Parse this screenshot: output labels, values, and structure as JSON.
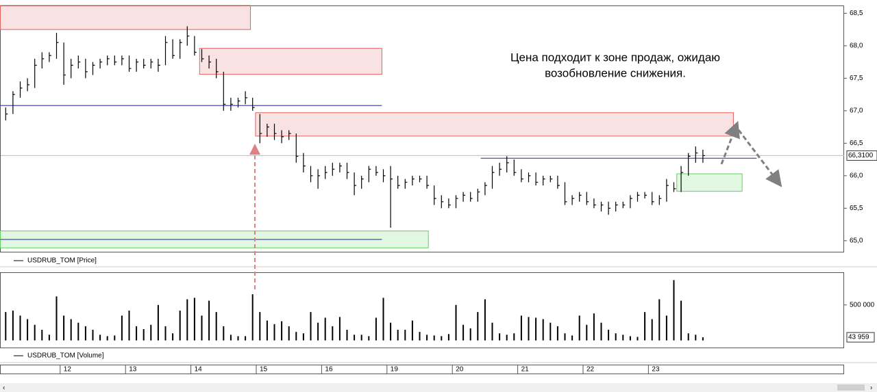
{
  "chart_data": [
    {
      "type": "ohlc",
      "legend": "USDRUB_TOM [Price]",
      "color": "#000000",
      "annotation_lines": [
        "Цена подходит к зоне продаж, ожидаю",
        "возобновление снижения."
      ],
      "ylim": [
        64.83,
        68.62
      ],
      "yticks": [
        {
          "value": 65.0,
          "label": "65,0"
        },
        {
          "value": 65.5,
          "label": "65,5"
        },
        {
          "value": 66.0,
          "label": "66,0"
        },
        {
          "value": 66.5,
          "label": "66,5"
        },
        {
          "value": 67.0,
          "label": "67,0"
        },
        {
          "value": 67.5,
          "label": "67,5"
        },
        {
          "value": 68.0,
          "label": "68,0"
        },
        {
          "value": 68.5,
          "label": "68,5"
        }
      ],
      "current": {
        "value": 66.31,
        "label": "66,3100"
      },
      "high": [
        67.05,
        67.3,
        67.45,
        67.5,
        67.8,
        67.9,
        67.9,
        68.2,
        68.05,
        67.8,
        67.85,
        67.8,
        67.75,
        67.8,
        67.85,
        67.85,
        67.85,
        67.85,
        67.8,
        67.8,
        67.8,
        67.8,
        68.15,
        68.1,
        68.1,
        68.3,
        68.15,
        67.95,
        67.85,
        67.8,
        67.6,
        67.2,
        67.2,
        67.3,
        67.2,
        66.95,
        66.8,
        66.8,
        66.7,
        66.7,
        66.65,
        66.35,
        66.15,
        66.1,
        66.15,
        66.2,
        66.2,
        66.2,
        66.05,
        66.0,
        66.15,
        66.15,
        66.1,
        66.15,
        66.0,
        65.95,
        66.0,
        66.0,
        66.0,
        65.85,
        65.7,
        65.65,
        65.7,
        65.75,
        65.75,
        65.8,
        65.9,
        66.15,
        66.2,
        66.3,
        66.25,
        66.1,
        66.05,
        66.05,
        66.0,
        66.0,
        66.0,
        65.9,
        65.7,
        65.75,
        65.75,
        65.65,
        65.6,
        65.6,
        65.6,
        65.6,
        65.7,
        65.75,
        65.75,
        65.75,
        65.7,
        65.95,
        65.9,
        66.15,
        66.35,
        66.45,
        66.4
      ],
      "low": [
        66.85,
        66.95,
        67.2,
        67.3,
        67.35,
        67.65,
        67.75,
        67.8,
        67.4,
        67.5,
        67.65,
        67.5,
        67.55,
        67.65,
        67.7,
        67.7,
        67.7,
        67.6,
        67.6,
        67.65,
        67.65,
        67.6,
        67.7,
        67.8,
        67.8,
        68.0,
        67.85,
        67.75,
        67.65,
        67.5,
        67.0,
        67.0,
        67.05,
        67.1,
        67.0,
        66.5,
        66.6,
        66.55,
        66.5,
        66.55,
        66.2,
        66.05,
        65.9,
        65.8,
        65.95,
        66.0,
        66.05,
        65.95,
        65.7,
        65.8,
        65.9,
        66.0,
        65.9,
        65.2,
        65.8,
        65.8,
        65.85,
        65.9,
        65.8,
        65.55,
        65.5,
        65.5,
        65.5,
        65.6,
        65.6,
        65.6,
        65.7,
        65.8,
        66.0,
        66.05,
        66.0,
        65.9,
        65.9,
        65.85,
        65.85,
        65.9,
        65.8,
        65.55,
        65.55,
        65.6,
        65.55,
        65.5,
        65.45,
        65.4,
        65.45,
        65.5,
        65.5,
        65.6,
        65.65,
        65.55,
        65.55,
        65.6,
        65.75,
        65.75,
        66.0,
        66.2,
        66.2
      ],
      "close": [
        66.95,
        67.25,
        67.35,
        67.4,
        67.7,
        67.8,
        67.85,
        68.05,
        67.55,
        67.7,
        67.75,
        67.6,
        67.7,
        67.75,
        67.8,
        67.75,
        67.8,
        67.65,
        67.75,
        67.7,
        67.75,
        67.7,
        68.05,
        67.85,
        68.05,
        68.15,
        67.9,
        67.8,
        67.75,
        67.6,
        67.1,
        67.1,
        67.15,
        67.2,
        67.05,
        66.65,
        66.75,
        66.65,
        66.6,
        66.65,
        66.3,
        66.15,
        66.0,
        66.0,
        66.05,
        66.1,
        66.15,
        66.05,
        65.85,
        65.95,
        66.1,
        66.05,
        66.0,
        65.95,
        65.85,
        65.9,
        65.95,
        65.95,
        65.85,
        65.65,
        65.6,
        65.55,
        65.65,
        65.7,
        65.65,
        65.75,
        65.85,
        66.05,
        66.1,
        66.2,
        66.05,
        65.95,
        66.0,
        65.9,
        65.95,
        65.95,
        65.85,
        65.6,
        65.65,
        65.7,
        65.6,
        65.55,
        65.55,
        65.5,
        65.55,
        65.55,
        65.65,
        65.7,
        65.7,
        65.6,
        65.65,
        65.85,
        65.8,
        66.05,
        66.3,
        66.35,
        66.31
      ],
      "zones": [
        {
          "color": "#e06060",
          "x": [
            -0.3,
            34.2
          ],
          "y": [
            68.25,
            68.62
          ]
        },
        {
          "color": "#e06060",
          "x": [
            27.2,
            52.3
          ],
          "y": [
            67.56,
            67.96
          ]
        },
        {
          "color": "#e06060",
          "x": [
            34.9,
            100.7
          ],
          "y": [
            66.61,
            66.97
          ]
        },
        {
          "color": "#60d060",
          "x": [
            -0.3,
            58.7
          ],
          "y": [
            64.89,
            65.15
          ]
        },
        {
          "color": "#60d060",
          "x": [
            92.9,
            101.9
          ],
          "y": [
            65.76,
            66.03
          ]
        }
      ],
      "levels": [
        {
          "color": "#2020a0",
          "x": [
            -0.3,
            52.3
          ],
          "y": 67.08
        },
        {
          "color": "#2020a0",
          "x": [
            65.9,
            103.9
          ],
          "y": 66.27
        },
        {
          "color": "#2020a0",
          "x": [
            -0.3,
            52.3
          ],
          "y": 65.02
        }
      ]
    },
    {
      "type": "bar",
      "legend": "USDRUB_TOM [Volume]",
      "color": "#000000",
      "ylim": [
        -100000,
        960000
      ],
      "yticks": [
        {
          "value": 500000,
          "label": "500 000"
        }
      ],
      "current": {
        "value": 43959,
        "label": "43 959"
      },
      "categories": [
        null,
        null,
        null,
        null,
        null,
        null,
        null,
        null,
        "12",
        null,
        null,
        null,
        null,
        null,
        null,
        null,
        null,
        "13",
        null,
        null,
        null,
        null,
        null,
        null,
        null,
        null,
        "14",
        null,
        null,
        null,
        null,
        null,
        null,
        null,
        null,
        "15",
        null,
        null,
        null,
        null,
        null,
        null,
        null,
        null,
        "16",
        null,
        null,
        null,
        null,
        null,
        null,
        null,
        null,
        "19",
        null,
        null,
        null,
        null,
        null,
        null,
        null,
        null,
        "20",
        null,
        null,
        null,
        null,
        null,
        null,
        null,
        null,
        "21",
        null,
        null,
        null,
        null,
        null,
        null,
        null,
        null,
        "22",
        null,
        null,
        null,
        null,
        null,
        null,
        null,
        null,
        "23",
        null,
        null,
        null,
        null,
        null,
        null,
        null
      ],
      "values": [
        400000,
        420000,
        350000,
        300000,
        220000,
        150000,
        80000,
        620000,
        350000,
        300000,
        250000,
        200000,
        150000,
        80000,
        60000,
        70000,
        350000,
        420000,
        200000,
        160000,
        220000,
        500000,
        200000,
        100000,
        420000,
        580000,
        600000,
        350000,
        560000,
        400000,
        200000,
        80000,
        60000,
        60000,
        650000,
        400000,
        280000,
        230000,
        270000,
        200000,
        120000,
        100000,
        400000,
        250000,
        320000,
        200000,
        330000,
        150000,
        80000,
        80000,
        60000,
        320000,
        600000,
        250000,
        150000,
        150000,
        280000,
        120000,
        80000,
        70000,
        60000,
        90000,
        500000,
        220000,
        170000,
        400000,
        580000,
        250000,
        100000,
        80000,
        100000,
        350000,
        330000,
        320000,
        300000,
        250000,
        200000,
        100000,
        70000,
        350000,
        220000,
        380000,
        250000,
        150000,
        100000,
        80000,
        60000,
        50000,
        400000,
        300000,
        580000,
        350000,
        850000,
        560000,
        100000,
        80000,
        43959
      ]
    }
  ]
}
